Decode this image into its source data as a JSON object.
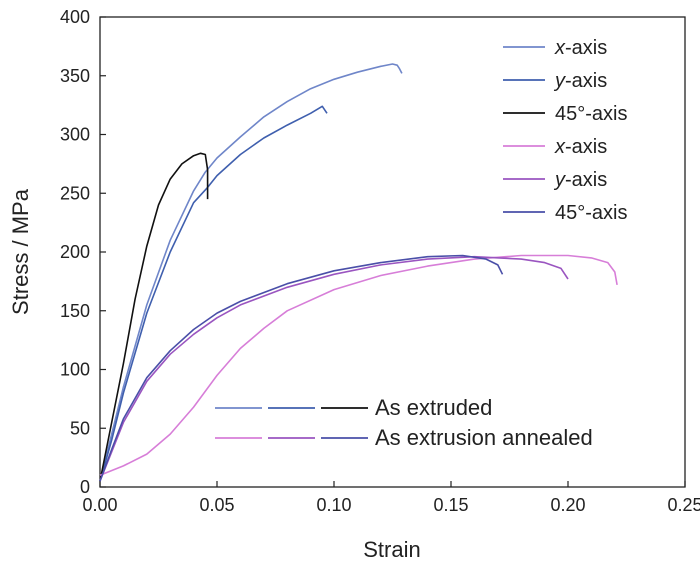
{
  "chart_data": {
    "type": "line",
    "xlabel": "Strain",
    "ylabel": "Stress / MPa",
    "xlim": [
      0,
      0.25
    ],
    "ylim": [
      0,
      400
    ],
    "x_ticks": [
      "0.00",
      "0.05",
      "0.10",
      "0.15",
      "0.20",
      "0.25"
    ],
    "y_ticks": [
      "0",
      "50",
      "100",
      "150",
      "200",
      "250",
      "300",
      "350",
      "400"
    ],
    "grid": false,
    "legend_position": "top-right",
    "series": [
      {
        "legend_prefix": "x",
        "legend_suffix": "-axis",
        "color": "#6f86c9",
        "group": "As extruded",
        "x": [
          0.0,
          0.005,
          0.01,
          0.02,
          0.03,
          0.04,
          0.045,
          0.05,
          0.06,
          0.07,
          0.08,
          0.09,
          0.1,
          0.11,
          0.12,
          0.125,
          0.127,
          0.128,
          0.129
        ],
        "y": [
          5,
          45,
          85,
          155,
          210,
          252,
          268,
          280,
          298,
          315,
          328,
          339,
          347,
          353,
          358,
          360,
          359,
          356,
          352
        ]
      },
      {
        "legend_prefix": "y",
        "legend_suffix": "-axis",
        "color": "#3f5fae",
        "group": "As extruded",
        "x": [
          0.0,
          0.005,
          0.01,
          0.02,
          0.03,
          0.04,
          0.046,
          0.05,
          0.06,
          0.07,
          0.08,
          0.09,
          0.095,
          0.097
        ],
        "y": [
          5,
          40,
          80,
          148,
          200,
          242,
          255,
          265,
          283,
          297,
          308,
          318,
          324,
          318
        ]
      },
      {
        "legend_prefix": "",
        "legend_suffix": "45°-axis",
        "color": "#111111",
        "group": "As extruded",
        "x": [
          0.0,
          0.005,
          0.01,
          0.015,
          0.02,
          0.025,
          0.03,
          0.035,
          0.04,
          0.043,
          0.045,
          0.046,
          0.046
        ],
        "y": [
          5,
          55,
          105,
          160,
          205,
          240,
          262,
          275,
          282,
          284,
          283,
          270,
          245
        ]
      },
      {
        "legend_prefix": "x",
        "legend_suffix": "-axis",
        "color": "#d77ed8",
        "group": "As extrusion annealed",
        "x": [
          0.0,
          0.01,
          0.02,
          0.03,
          0.04,
          0.05,
          0.06,
          0.07,
          0.08,
          0.1,
          0.12,
          0.14,
          0.16,
          0.18,
          0.2,
          0.21,
          0.217,
          0.22,
          0.221
        ],
        "y": [
          10,
          18,
          28,
          45,
          68,
          95,
          118,
          135,
          150,
          168,
          180,
          188,
          194,
          197,
          197,
          195,
          191,
          183,
          172
        ]
      },
      {
        "legend_prefix": "y",
        "legend_suffix": "-axis",
        "color": "#9a55c0",
        "group": "As extrusion annealed",
        "x": [
          0.0,
          0.005,
          0.01,
          0.02,
          0.03,
          0.04,
          0.05,
          0.06,
          0.08,
          0.1,
          0.12,
          0.14,
          0.16,
          0.18,
          0.19,
          0.197,
          0.2
        ],
        "y": [
          5,
          30,
          55,
          90,
          113,
          130,
          144,
          155,
          170,
          181,
          189,
          194,
          196,
          194,
          191,
          186,
          177
        ]
      },
      {
        "legend_prefix": "",
        "legend_suffix": "45°-axis",
        "color": "#4a4fa8",
        "group": "As extrusion annealed",
        "x": [
          0.0,
          0.005,
          0.01,
          0.02,
          0.03,
          0.04,
          0.05,
          0.06,
          0.08,
          0.1,
          0.12,
          0.14,
          0.155,
          0.165,
          0.17,
          0.172
        ],
        "y": [
          5,
          32,
          58,
          93,
          116,
          134,
          148,
          158,
          173,
          184,
          191,
          196,
          197,
          194,
          189,
          181
        ]
      }
    ],
    "group_labels": [
      "As extruded",
      "As extrusion annealed"
    ]
  }
}
